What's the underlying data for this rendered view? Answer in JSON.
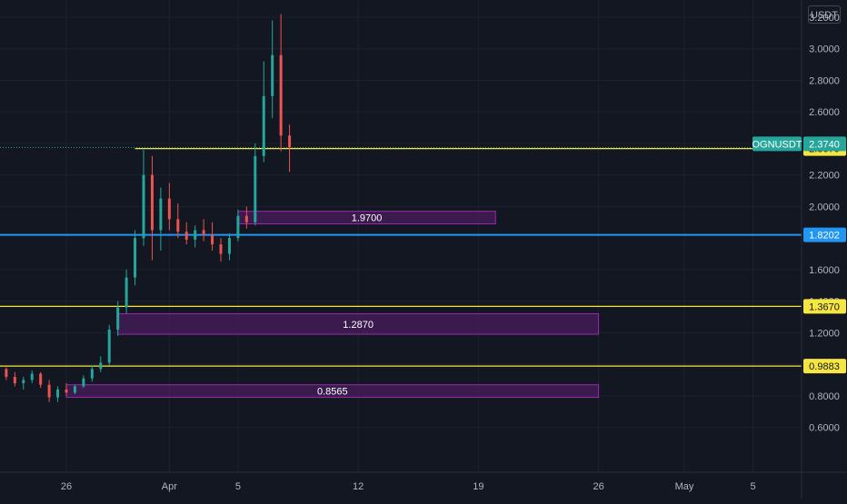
{
  "unit_label": "USDT",
  "colors": {
    "background": "#131722",
    "grid": "#1e222d",
    "axis_text": "#b2b5be",
    "up": "#26a69a",
    "down": "#ef5350",
    "yellow_line": "#f5e642",
    "blue_line": "#2196f3",
    "zone_fill": "#4a1d5e",
    "zone_border": "#9c27b0"
  },
  "chart_data": {
    "type": "candlestick",
    "symbol": "OGNUSDT",
    "y_axis": {
      "min": 0.5,
      "max": 3.3,
      "ticks": [
        {
          "value": 0.6,
          "label": "0.6000"
        },
        {
          "value": 0.8,
          "label": "0.8000"
        },
        {
          "value": 1.0,
          "label": "1.0000"
        },
        {
          "value": 1.2,
          "label": "1.2000"
        },
        {
          "value": 1.4,
          "label": "1.4000"
        },
        {
          "value": 1.6,
          "label": "1.6000"
        },
        {
          "value": 2.0,
          "label": "2.0000"
        },
        {
          "value": 2.2,
          "label": "2.2000"
        },
        {
          "value": 2.4,
          "label": "2.4000"
        },
        {
          "value": 2.6,
          "label": "2.6000"
        },
        {
          "value": 2.8,
          "label": "2.8000"
        },
        {
          "value": 3.0,
          "label": "3.0000"
        },
        {
          "value": 3.2,
          "label": "3.2000"
        }
      ]
    },
    "x_axis": {
      "ticks": [
        {
          "date": "2021-03-26",
          "label": "26"
        },
        {
          "date": "2021-04-01",
          "label": "Apr"
        },
        {
          "date": "2021-04-05",
          "label": "5"
        },
        {
          "date": "2021-04-12",
          "label": "12"
        },
        {
          "date": "2021-04-19",
          "label": "19"
        },
        {
          "date": "2021-04-26",
          "label": "26"
        },
        {
          "date": "2021-05-01",
          "label": "May"
        },
        {
          "date": "2021-05-05",
          "label": "5"
        }
      ]
    },
    "horizontal_lines": [
      {
        "value": 2.367,
        "label": "2.3670",
        "color": "#f5e642",
        "from_date": "2021-03-30"
      },
      {
        "value": 1.8202,
        "label": "1.8202",
        "color": "#2196f3"
      },
      {
        "value": 1.367,
        "label": "1.3670",
        "color": "#f5e642"
      },
      {
        "value": 0.9883,
        "label": "0.9883",
        "color": "#f5e642"
      }
    ],
    "last_price": {
      "value": 2.374,
      "label": "2.3740",
      "symbol": "OGNUSDT"
    },
    "zones": [
      {
        "label": "1.9700",
        "top": 1.97,
        "bottom": 1.89,
        "from": "2021-04-05",
        "to": "2021-04-20"
      },
      {
        "label": "1.2870",
        "top": 1.32,
        "bottom": 1.19,
        "from": "2021-03-29",
        "to": "2021-04-26"
      },
      {
        "label": "0.8565",
        "top": 0.87,
        "bottom": 0.79,
        "from": "2021-03-26",
        "to": "2021-04-26"
      }
    ],
    "candles": [
      {
        "date": "2021-03-22T00",
        "o": 0.95,
        "h": 0.99,
        "l": 0.93,
        "c": 0.97
      },
      {
        "date": "2021-03-22T12",
        "o": 0.97,
        "h": 0.98,
        "l": 0.9,
        "c": 0.92
      },
      {
        "date": "2021-03-23T00",
        "o": 0.92,
        "h": 0.95,
        "l": 0.86,
        "c": 0.88
      },
      {
        "date": "2021-03-23T12",
        "o": 0.88,
        "h": 0.92,
        "l": 0.84,
        "c": 0.9
      },
      {
        "date": "2021-03-24T00",
        "o": 0.9,
        "h": 0.96,
        "l": 0.88,
        "c": 0.94
      },
      {
        "date": "2021-03-24T12",
        "o": 0.94,
        "h": 0.95,
        "l": 0.85,
        "c": 0.87
      },
      {
        "date": "2021-03-25T00",
        "o": 0.87,
        "h": 0.9,
        "l": 0.76,
        "c": 0.79
      },
      {
        "date": "2021-03-25T12",
        "o": 0.79,
        "h": 0.86,
        "l": 0.76,
        "c": 0.84
      },
      {
        "date": "2021-03-26T00",
        "o": 0.84,
        "h": 0.88,
        "l": 0.8,
        "c": 0.82
      },
      {
        "date": "2021-03-26T12",
        "o": 0.82,
        "h": 0.87,
        "l": 0.81,
        "c": 0.86
      },
      {
        "date": "2021-03-27T00",
        "o": 0.86,
        "h": 0.93,
        "l": 0.85,
        "c": 0.91
      },
      {
        "date": "2021-03-27T12",
        "o": 0.91,
        "h": 0.99,
        "l": 0.89,
        "c": 0.97
      },
      {
        "date": "2021-03-28T00",
        "o": 0.97,
        "h": 1.05,
        "l": 0.95,
        "c": 1.01
      },
      {
        "date": "2021-03-28T12",
        "o": 1.01,
        "h": 1.25,
        "l": 0.99,
        "c": 1.22
      },
      {
        "date": "2021-03-29T00",
        "o": 1.22,
        "h": 1.4,
        "l": 1.18,
        "c": 1.36
      },
      {
        "date": "2021-03-29T12",
        "o": 1.36,
        "h": 1.6,
        "l": 1.32,
        "c": 1.55
      },
      {
        "date": "2021-03-30T00",
        "o": 1.55,
        "h": 1.85,
        "l": 1.5,
        "c": 1.8
      },
      {
        "date": "2021-03-30T12",
        "o": 1.8,
        "h": 2.36,
        "l": 1.75,
        "c": 2.2
      },
      {
        "date": "2021-03-31T00",
        "o": 2.2,
        "h": 2.32,
        "l": 1.66,
        "c": 1.85
      },
      {
        "date": "2021-03-31T12",
        "o": 1.85,
        "h": 2.12,
        "l": 1.72,
        "c": 2.05
      },
      {
        "date": "2021-04-01T00",
        "o": 2.05,
        "h": 2.15,
        "l": 1.85,
        "c": 1.92
      },
      {
        "date": "2021-04-01T12",
        "o": 1.92,
        "h": 2.02,
        "l": 1.8,
        "c": 1.84
      },
      {
        "date": "2021-04-02T00",
        "o": 1.84,
        "h": 1.9,
        "l": 1.76,
        "c": 1.79
      },
      {
        "date": "2021-04-02T12",
        "o": 1.79,
        "h": 1.88,
        "l": 1.74,
        "c": 1.85
      },
      {
        "date": "2021-04-03T00",
        "o": 1.85,
        "h": 1.92,
        "l": 1.78,
        "c": 1.82
      },
      {
        "date": "2021-04-03T12",
        "o": 1.82,
        "h": 1.9,
        "l": 1.72,
        "c": 1.76
      },
      {
        "date": "2021-04-04T00",
        "o": 1.76,
        "h": 1.8,
        "l": 1.65,
        "c": 1.7
      },
      {
        "date": "2021-04-04T12",
        "o": 1.7,
        "h": 1.83,
        "l": 1.66,
        "c": 1.8
      },
      {
        "date": "2021-04-05T00",
        "o": 1.8,
        "h": 1.98,
        "l": 1.78,
        "c": 1.94
      },
      {
        "date": "2021-04-05T12",
        "o": 1.94,
        "h": 2.0,
        "l": 1.86,
        "c": 1.9
      },
      {
        "date": "2021-04-06T00",
        "o": 1.9,
        "h": 2.4,
        "l": 1.88,
        "c": 2.32
      },
      {
        "date": "2021-04-06T12",
        "o": 2.32,
        "h": 2.92,
        "l": 2.28,
        "c": 2.7
      },
      {
        "date": "2021-04-07T00",
        "o": 2.7,
        "h": 3.18,
        "l": 2.56,
        "c": 2.96
      },
      {
        "date": "2021-04-07T12",
        "o": 2.96,
        "h": 3.22,
        "l": 2.35,
        "c": 2.45
      },
      {
        "date": "2021-04-08T00",
        "o": 2.45,
        "h": 2.52,
        "l": 2.22,
        "c": 2.374
      }
    ]
  }
}
